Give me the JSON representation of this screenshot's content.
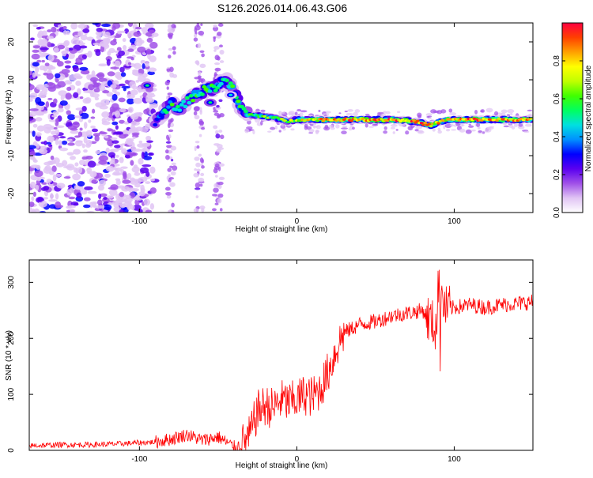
{
  "title": "S126.2026.014.06.43.G06",
  "chart_data": [
    {
      "type": "heatmap",
      "xlabel": "Height of straight line (km)",
      "ylabel": "Frequency (Hz)",
      "xlim": [
        -170,
        150
      ],
      "ylim": [
        -25,
        25
      ],
      "xticks": [
        -100,
        0,
        100
      ],
      "yticks": [
        -20,
        -10,
        0,
        10,
        20
      ],
      "colorbar": {
        "label": "Normalized spectral amplitude",
        "range": [
          0,
          1
        ],
        "ticks": [
          "0.0",
          "0.2",
          "0.4",
          "0.6",
          "0.8"
        ],
        "colors": [
          "#ffffff",
          "#e0c4f4",
          "#a050e8",
          "#5a00f0",
          "#0000ff",
          "#0090ff",
          "#00e0e0",
          "#00ff60",
          "#40ff00",
          "#c0ff00",
          "#ffff00",
          "#ffa000",
          "#ff4000",
          "#ff0040"
        ]
      },
      "noise_region_km": [
        -170,
        -90
      ],
      "ridge": [
        {
          "x": -90,
          "y": -1,
          "a": 0.3
        },
        {
          "x": -85,
          "y": 1,
          "a": 0.45
        },
        {
          "x": -80,
          "y": 4,
          "a": 0.5
        },
        {
          "x": -75,
          "y": 2,
          "a": 0.45
        },
        {
          "x": -68,
          "y": 5,
          "a": 0.5
        },
        {
          "x": -60,
          "y": 7,
          "a": 0.55
        },
        {
          "x": -52,
          "y": 8,
          "a": 0.55
        },
        {
          "x": -45,
          "y": 10,
          "a": 0.5
        },
        {
          "x": -40,
          "y": 7,
          "a": 0.55
        },
        {
          "x": -36,
          "y": 3,
          "a": 0.55
        },
        {
          "x": -32,
          "y": 1,
          "a": 0.5
        },
        {
          "x": -25,
          "y": 0.5,
          "a": 0.55
        },
        {
          "x": -15,
          "y": 0,
          "a": 0.6
        },
        {
          "x": -5,
          "y": -1,
          "a": 0.6
        },
        {
          "x": 0,
          "y": -0.5,
          "a": 0.7
        },
        {
          "x": 15,
          "y": -0.5,
          "a": 0.8
        },
        {
          "x": 40,
          "y": -0.5,
          "a": 0.85
        },
        {
          "x": 60,
          "y": -0.5,
          "a": 0.85
        },
        {
          "x": 75,
          "y": -1,
          "a": 0.85
        },
        {
          "x": 85,
          "y": -2,
          "a": 0.8
        },
        {
          "x": 95,
          "y": -0.5,
          "a": 0.75
        },
        {
          "x": 110,
          "y": -0.5,
          "a": 0.9
        },
        {
          "x": 130,
          "y": -0.5,
          "a": 0.8
        },
        {
          "x": 150,
          "y": -0.5,
          "a": 0.75
        }
      ],
      "side_lobes": [
        {
          "x": -95,
          "y": 8.5,
          "a": 0.55
        },
        {
          "x": -55,
          "y": 4,
          "a": 0.5
        },
        {
          "x": -42,
          "y": 6,
          "a": 0.45
        }
      ]
    },
    {
      "type": "line",
      "xlabel": "Height of straight line (km)",
      "ylabel": "SNR (10 * v/v)",
      "xlim": [
        -170,
        150
      ],
      "ylim": [
        0,
        340
      ],
      "xticks": [
        -100,
        0,
        100
      ],
      "yticks": [
        0,
        100,
        200,
        300
      ],
      "color": "#ff0000",
      "series": [
        {
          "x": [
            -170,
            -150,
            -130,
            -110,
            -90,
            -80,
            -70,
            -60,
            -50,
            -45,
            -40,
            -35,
            -30,
            -25,
            -20,
            -15,
            -10,
            -5,
            0,
            5,
            10,
            15,
            20,
            25,
            28,
            30,
            40,
            50,
            60,
            70,
            80,
            85,
            88,
            90,
            92,
            95,
            100,
            110,
            120,
            130,
            140,
            150
          ],
          "values": [
            8,
            10,
            10,
            12,
            15,
            20,
            28,
            18,
            24,
            15,
            6,
            10,
            25,
            70,
            80,
            75,
            90,
            85,
            90,
            100,
            95,
            110,
            140,
            180,
            200,
            210,
            225,
            230,
            240,
            245,
            250,
            230,
            220,
            255,
            270,
            250,
            255,
            260,
            255,
            260,
            262,
            265
          ]
        }
      ]
    }
  ]
}
